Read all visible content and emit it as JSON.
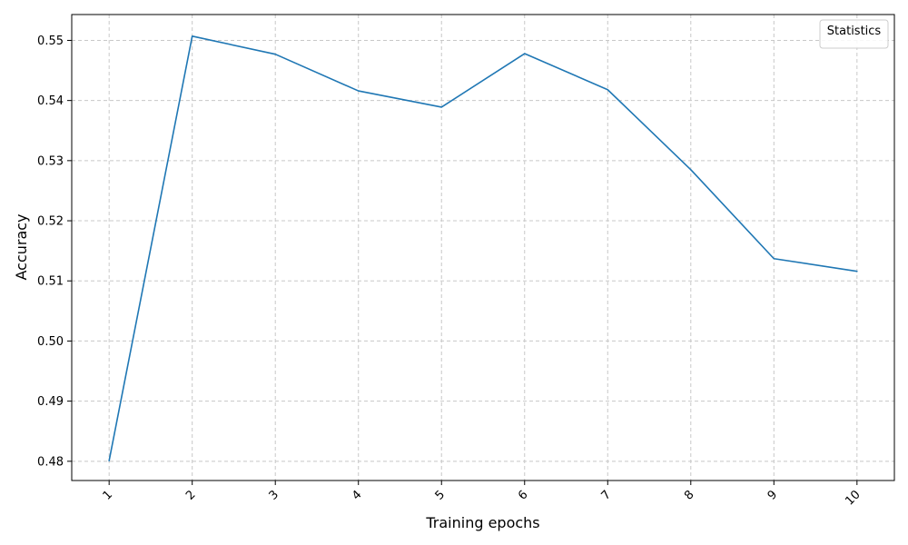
{
  "chart_data": {
    "type": "line",
    "xlabel": "Training epochs",
    "ylabel": "Accuracy",
    "x": [
      1,
      2,
      3,
      4,
      5,
      6,
      7,
      8,
      9,
      10
    ],
    "x_tick_labels": [
      "1",
      "2",
      "3",
      "4",
      "5",
      "6",
      "7",
      "8",
      "9",
      "10"
    ],
    "series": [
      {
        "values": [
          0.4801,
          0.5507,
          0.5477,
          0.5416,
          0.5389,
          0.5478,
          0.5418,
          0.5285,
          0.5137,
          0.5116
        ],
        "color": "#1f77b4"
      }
    ],
    "xlim": [
      0.55,
      10.45
    ],
    "ylim": [
      0.4768,
      0.5543
    ],
    "y_ticks": [
      0.48,
      0.49,
      0.5,
      0.51,
      0.52,
      0.53,
      0.54,
      0.55
    ],
    "y_tick_labels": [
      "0.48",
      "0.49",
      "0.50",
      "0.51",
      "0.52",
      "0.53",
      "0.54",
      "0.55"
    ],
    "grid": true,
    "grid_color": "#c8c8c8",
    "legend": {
      "title": "Statistics",
      "placement": "top-right"
    }
  }
}
